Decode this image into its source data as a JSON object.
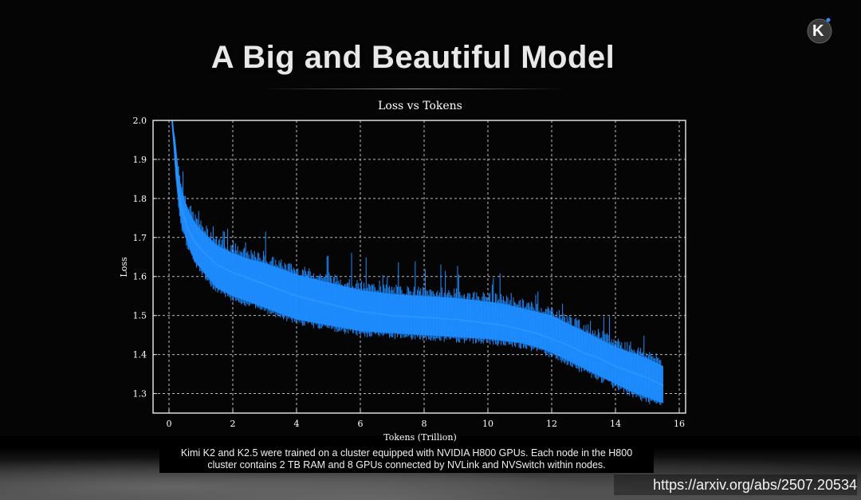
{
  "slide": {
    "title": "A Big and Beautiful Model",
    "caption_line1": "Kimi K2 and K2.5 were trained on a cluster equipped with NVIDIA H800 GPUs. Each node in the H800",
    "caption_line2": "cluster contains 2 TB RAM and 8 GPUs connected by NVLink and NVSwitch within nodes.",
    "url": "https://arxiv.org/abs/2507.20534",
    "logo_letter": "K"
  },
  "colors": {
    "line": "#1e8cff",
    "background": "#000000",
    "grid": "#bbbbbb",
    "text": "#ffffff"
  },
  "chart_data": {
    "type": "line",
    "title": "Loss vs Tokens",
    "xlabel": "Tokens (Trillion)",
    "ylabel": "Loss",
    "xlim": [
      -0.5,
      16.2
    ],
    "ylim": [
      1.25,
      2.0
    ],
    "xticks": [
      0,
      2,
      4,
      6,
      8,
      10,
      12,
      14,
      16
    ],
    "yticks": [
      1.3,
      1.4,
      1.5,
      1.6,
      1.7,
      1.8,
      1.9,
      2.0
    ],
    "grid": true,
    "series": [
      {
        "x": [
          0.1,
          0.2,
          0.3,
          0.4,
          0.6,
          0.8,
          1.0,
          1.5,
          2.0,
          2.5,
          3.0,
          3.5,
          4.0,
          5.0,
          6.0,
          7.0,
          8.0,
          9.0,
          10.0,
          10.5,
          11.0,
          11.5,
          12.0,
          12.5,
          13.0,
          13.5,
          14.0,
          14.5,
          15.0,
          15.5
        ],
        "y": [
          2.0,
          1.9,
          1.82,
          1.77,
          1.72,
          1.69,
          1.67,
          1.63,
          1.61,
          1.595,
          1.58,
          1.565,
          1.55,
          1.53,
          1.51,
          1.5,
          1.495,
          1.49,
          1.48,
          1.475,
          1.465,
          1.455,
          1.44,
          1.425,
          1.405,
          1.39,
          1.37,
          1.355,
          1.34,
          1.32
        ],
        "band_low": [
          1.99,
          1.86,
          1.78,
          1.73,
          1.68,
          1.64,
          1.62,
          1.57,
          1.55,
          1.535,
          1.52,
          1.505,
          1.49,
          1.475,
          1.46,
          1.455,
          1.45,
          1.445,
          1.44,
          1.435,
          1.43,
          1.42,
          1.405,
          1.385,
          1.365,
          1.345,
          1.325,
          1.305,
          1.29,
          1.275
        ],
        "band_high": [
          2.0,
          1.95,
          1.87,
          1.82,
          1.77,
          1.74,
          1.72,
          1.68,
          1.66,
          1.645,
          1.635,
          1.62,
          1.605,
          1.585,
          1.565,
          1.555,
          1.55,
          1.545,
          1.535,
          1.53,
          1.52,
          1.51,
          1.5,
          1.48,
          1.46,
          1.44,
          1.42,
          1.405,
          1.39,
          1.37
        ]
      }
    ]
  }
}
